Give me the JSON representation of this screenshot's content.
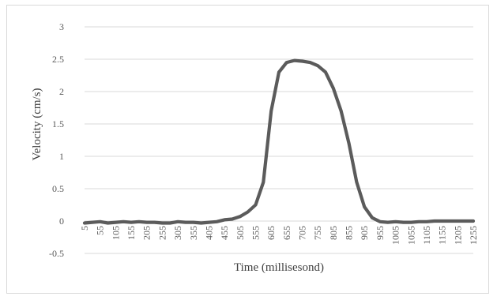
{
  "chart_data": {
    "type": "line",
    "title": "",
    "xlabel": "Time (millisesond)",
    "ylabel": "Velocity (cm/s)",
    "ylim": [
      -0.5,
      3
    ],
    "yticks": [
      "-0.5",
      "0",
      "0.5",
      "1",
      "1.5",
      "2",
      "2.5",
      "3"
    ],
    "grid": true,
    "legend": "none",
    "colors": {
      "line": "#5b5b5b",
      "grid": "#d9d9d9"
    },
    "x": [
      5,
      30,
      55,
      80,
      105,
      130,
      155,
      180,
      205,
      230,
      255,
      280,
      305,
      330,
      355,
      380,
      405,
      430,
      455,
      480,
      505,
      530,
      555,
      580,
      605,
      630,
      655,
      680,
      705,
      730,
      755,
      780,
      805,
      830,
      855,
      880,
      905,
      930,
      955,
      980,
      1005,
      1030,
      1055,
      1080,
      1105,
      1130,
      1155,
      1180,
      1205,
      1230,
      1255
    ],
    "x_tick_labels": [
      "5",
      "55",
      "105",
      "155",
      "205",
      "255",
      "305",
      "355",
      "405",
      "455",
      "505",
      "555",
      "605",
      "655",
      "705",
      "755",
      "805",
      "855",
      "905",
      "955",
      "1005",
      "1055",
      "1105",
      "1155",
      "1205",
      "1255"
    ],
    "series": [
      {
        "name": "",
        "values": [
          -0.03,
          -0.02,
          -0.01,
          -0.03,
          -0.02,
          -0.01,
          -0.02,
          -0.01,
          -0.02,
          -0.02,
          -0.03,
          -0.03,
          -0.01,
          -0.02,
          -0.02,
          -0.03,
          -0.02,
          -0.01,
          0.02,
          0.03,
          0.07,
          0.14,
          0.25,
          0.6,
          1.7,
          2.3,
          2.45,
          2.48,
          2.47,
          2.45,
          2.4,
          2.3,
          2.05,
          1.7,
          1.2,
          0.6,
          0.22,
          0.05,
          -0.01,
          -0.02,
          -0.01,
          -0.02,
          -0.02,
          -0.01,
          -0.01,
          0,
          0,
          0,
          0,
          0,
          0
        ]
      }
    ]
  }
}
